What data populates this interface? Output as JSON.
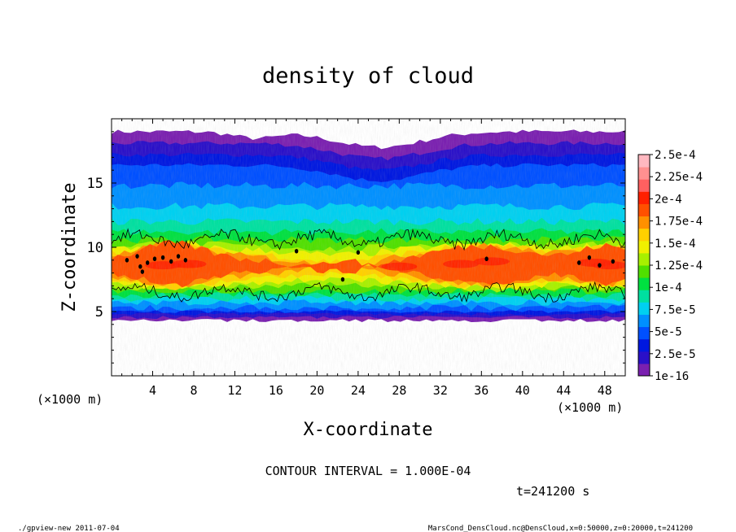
{
  "chart_data": {
    "type": "heatmap",
    "title": "density of cloud",
    "xlabel": "X-coordinate",
    "ylabel": "Z-coordinate",
    "x_unit_left": "(×1000 m)",
    "x_unit_right": "(×1000 m)",
    "xlim": [
      0,
      50
    ],
    "ylim": [
      0,
      20
    ],
    "x_ticks": [
      "4",
      "8",
      "12",
      "16",
      "20",
      "24",
      "28",
      "32",
      "36",
      "40",
      "44",
      "48"
    ],
    "x_tick_values": [
      4,
      8,
      12,
      16,
      20,
      24,
      28,
      32,
      36,
      40,
      44,
      48
    ],
    "y_ticks": [
      "5",
      "10",
      "15"
    ],
    "y_tick_values": [
      5,
      10,
      15
    ],
    "colorbar": {
      "labels": [
        "1e-16",
        "2.5e-5",
        "5e-5",
        "7.5e-5",
        "1e-4",
        "1.25e-4",
        "1.5e-4",
        "1.75e-4",
        "2e-4",
        "2.25e-4",
        "2.5e-4"
      ],
      "colors": [
        "#7a20b0",
        "#2a10c8",
        "#0018e0",
        "#0050ff",
        "#0090ff",
        "#00d0f0",
        "#00e0a0",
        "#00e040",
        "#50e000",
        "#a8f000",
        "#f0f000",
        "#ffd000",
        "#ff9000",
        "#ff5000",
        "#ff2000",
        "#ff6060",
        "#ff9090",
        "#ffb8c0"
      ]
    },
    "contour_interval_text": "CONTOUR INTERVAL = 1.000E-04",
    "contour_levels": [
      0.0001,
      0.0002
    ],
    "time_text": "t=241200 s"
  },
  "footer": {
    "left": "./gpview-new   2011-07-04",
    "right": "MarsCond_DensCloud.nc@DensCloud,x=0:50000,z=0:20000,t=241200"
  }
}
